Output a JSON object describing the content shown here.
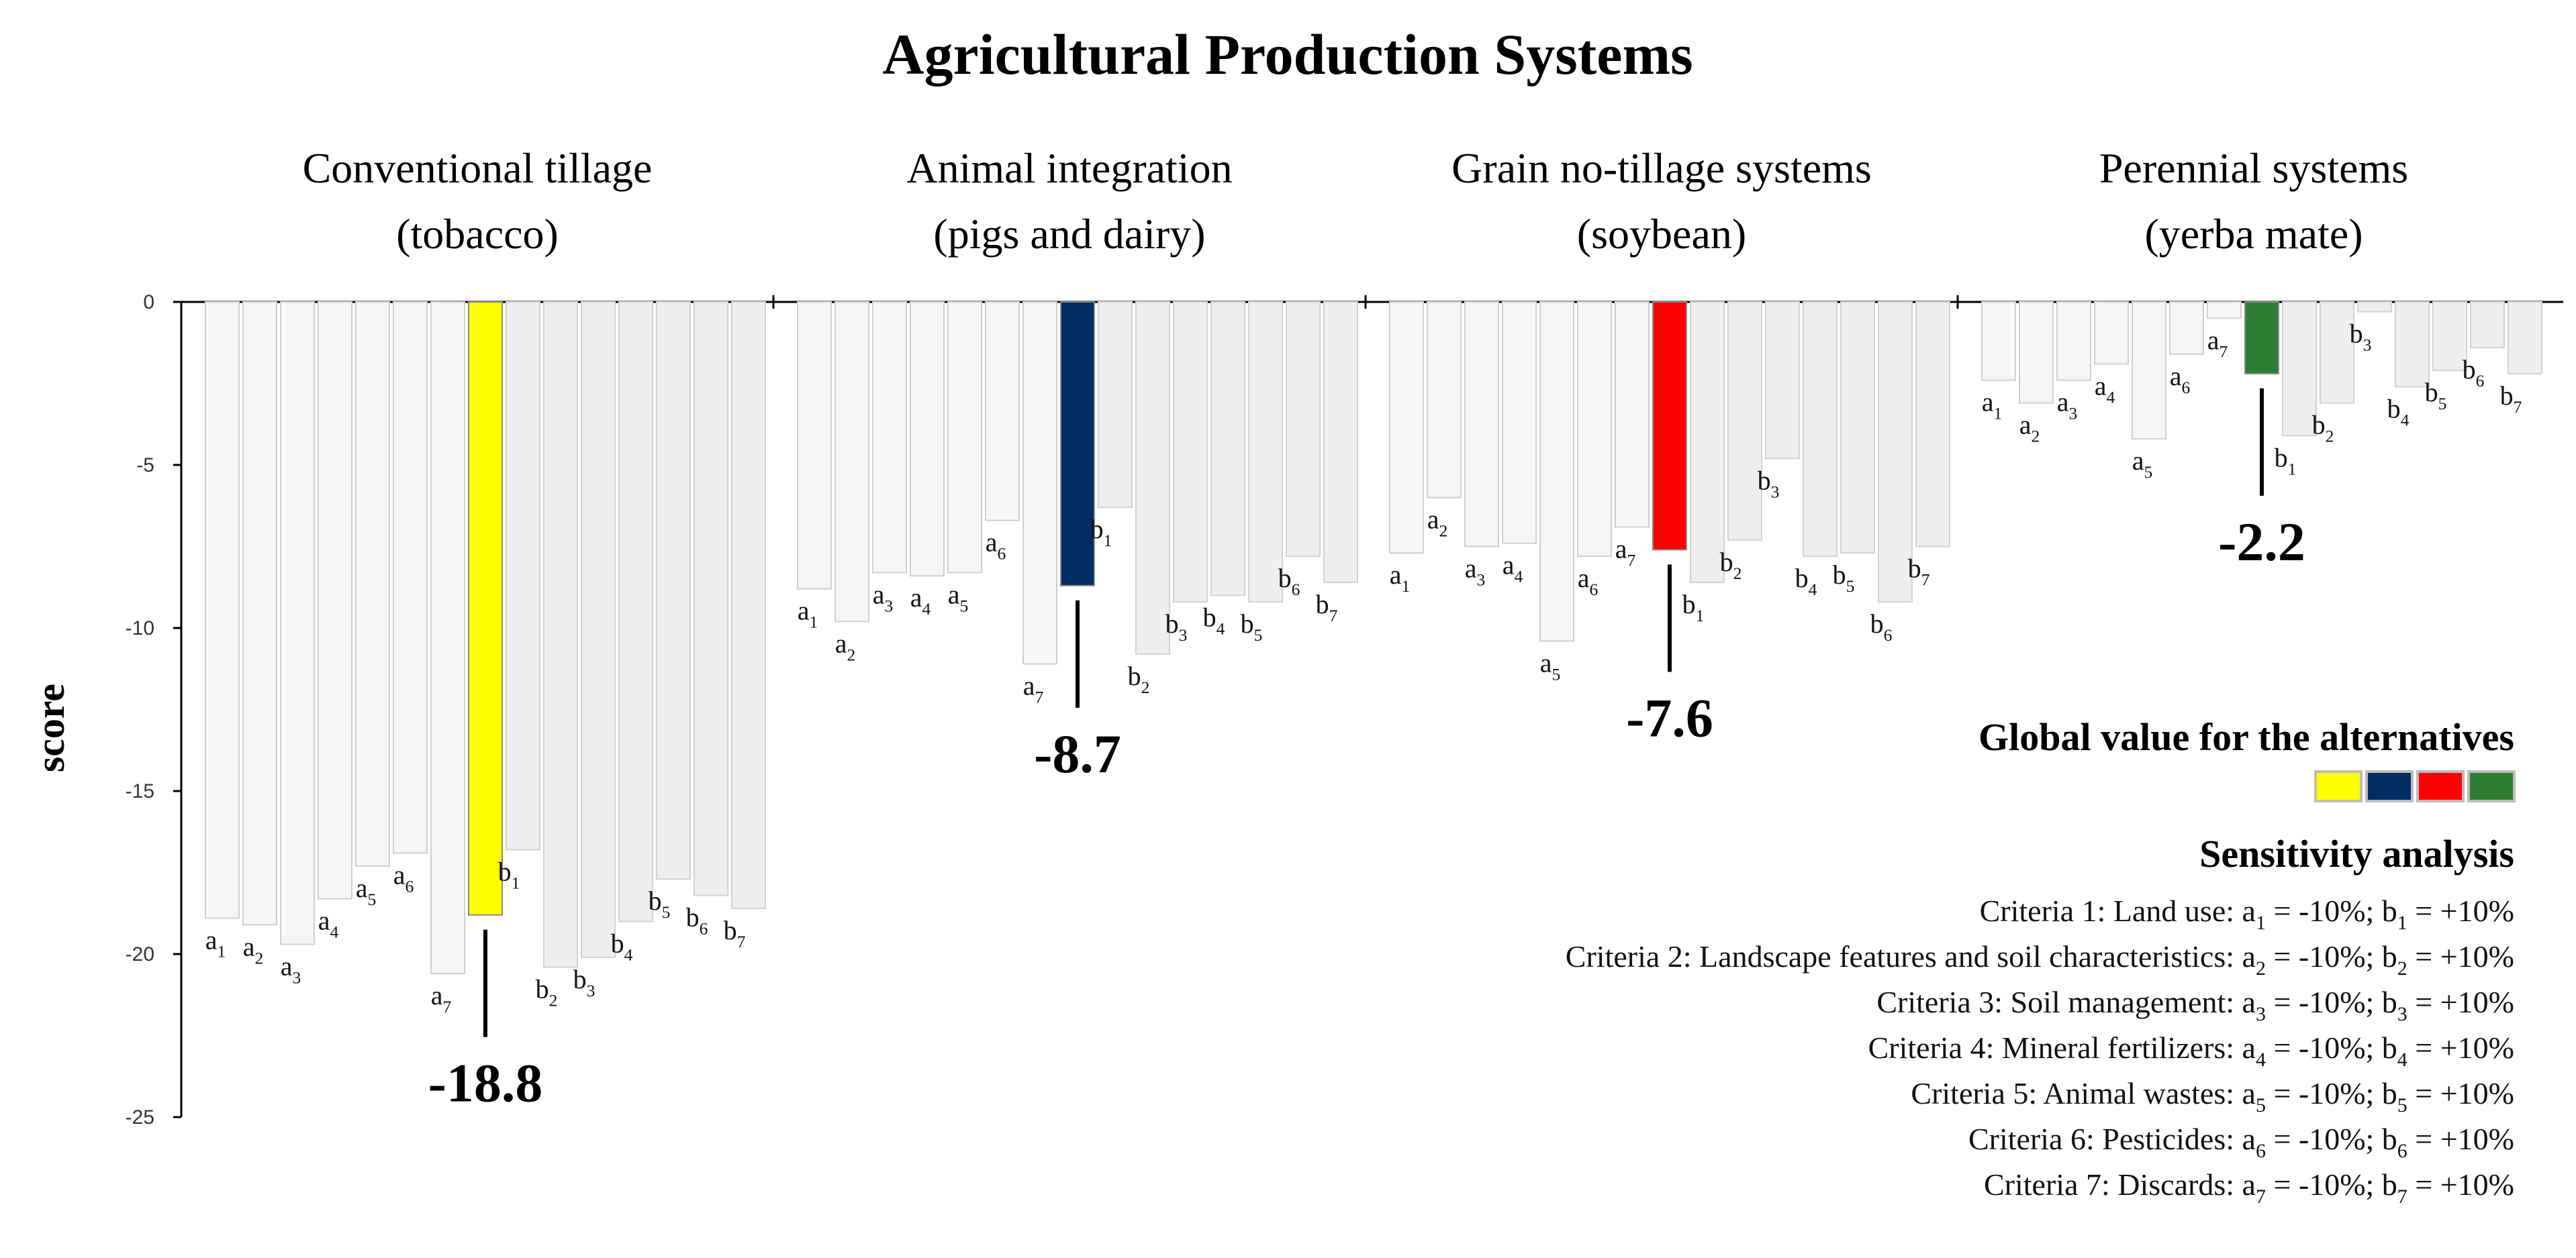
{
  "chart_data": {
    "type": "bar",
    "title": "Agricultural Production Systems",
    "ylabel": "score",
    "ylim": [
      -25,
      0
    ],
    "yticks": [
      0,
      -5,
      -10,
      -15,
      -20,
      -25
    ],
    "panels": [
      {
        "name_line1": "Conventional tillage",
        "name_line2": "(tobacco)",
        "color": "#ffff00",
        "global_value": -18.8,
        "global_label": "-18.8",
        "a_values": [
          -18.9,
          -19.1,
          -19.7,
          -18.3,
          -17.3,
          -16.9,
          -20.6
        ],
        "b_values": [
          -16.8,
          -20.4,
          -20.1,
          -19.0,
          -17.7,
          -18.2,
          -18.6
        ]
      },
      {
        "name_line1": "Animal integration",
        "name_line2": "(pigs and dairy)",
        "color": "#002d62",
        "global_value": -8.7,
        "global_label": "-8.7",
        "a_values": [
          -8.8,
          -9.8,
          -8.3,
          -8.4,
          -8.3,
          -6.7,
          -11.1
        ],
        "b_values": [
          -6.3,
          -10.8,
          -9.2,
          -9.0,
          -9.2,
          -7.8,
          -8.6
        ]
      },
      {
        "name_line1": "Grain no-tillage systems",
        "name_line2": "(soybean)",
        "color": "#ff0000",
        "global_value": -7.6,
        "global_label": "-7.6",
        "a_values": [
          -7.7,
          -6.0,
          -7.5,
          -7.4,
          -10.4,
          -7.8,
          -6.9
        ],
        "b_values": [
          -8.6,
          -7.3,
          -4.8,
          -7.8,
          -7.7,
          -9.2,
          -7.5
        ]
      },
      {
        "name_line1": "Perennial systems",
        "name_line2": "(yerba mate)",
        "color": "#2f7d32",
        "global_value": -2.2,
        "global_label": "-2.2",
        "a_values": [
          -2.4,
          -3.1,
          -2.4,
          -1.9,
          -4.2,
          -1.6,
          -0.5
        ],
        "b_values": [
          -4.1,
          -3.1,
          -0.3,
          -2.6,
          -2.1,
          -1.4,
          -2.2
        ]
      }
    ],
    "legend": {
      "title": "Global value for the alternatives",
      "colors": [
        "#ffff00",
        "#002d62",
        "#ff0000",
        "#2f7d32"
      ]
    },
    "sensitivity": {
      "title": "Sensitivity analysis",
      "criteria": [
        {
          "prefix": "Criteria 1: Land use: a",
          "n": "1",
          "mid": " = -10%; b",
          "suffix": " = +10%"
        },
        {
          "prefix": "Criteria 2: Landscape features and soil characteristics: a",
          "n": "2",
          "mid": " = -10%; b",
          "suffix": " = +10%"
        },
        {
          "prefix": "Criteria 3: Soil management: a",
          "n": "3",
          "mid": " = -10%; b",
          "suffix": " = +10%"
        },
        {
          "prefix": "Criteria 4: Mineral fertilizers: a",
          "n": "4",
          "mid": " = -10%; b",
          "suffix": " = +10%"
        },
        {
          "prefix": "Criteria 5: Animal wastes: a",
          "n": "5",
          "mid": " = -10%; b",
          "suffix": " = +10%"
        },
        {
          "prefix": "Criteria 6: Pesticides: a",
          "n": "6",
          "mid": " = -10%; b",
          "suffix": " = +10%"
        },
        {
          "prefix": "Criteria 7: Discards: a",
          "n": "7",
          "mid": " = -10%; b",
          "suffix": " = +10%"
        }
      ]
    }
  }
}
